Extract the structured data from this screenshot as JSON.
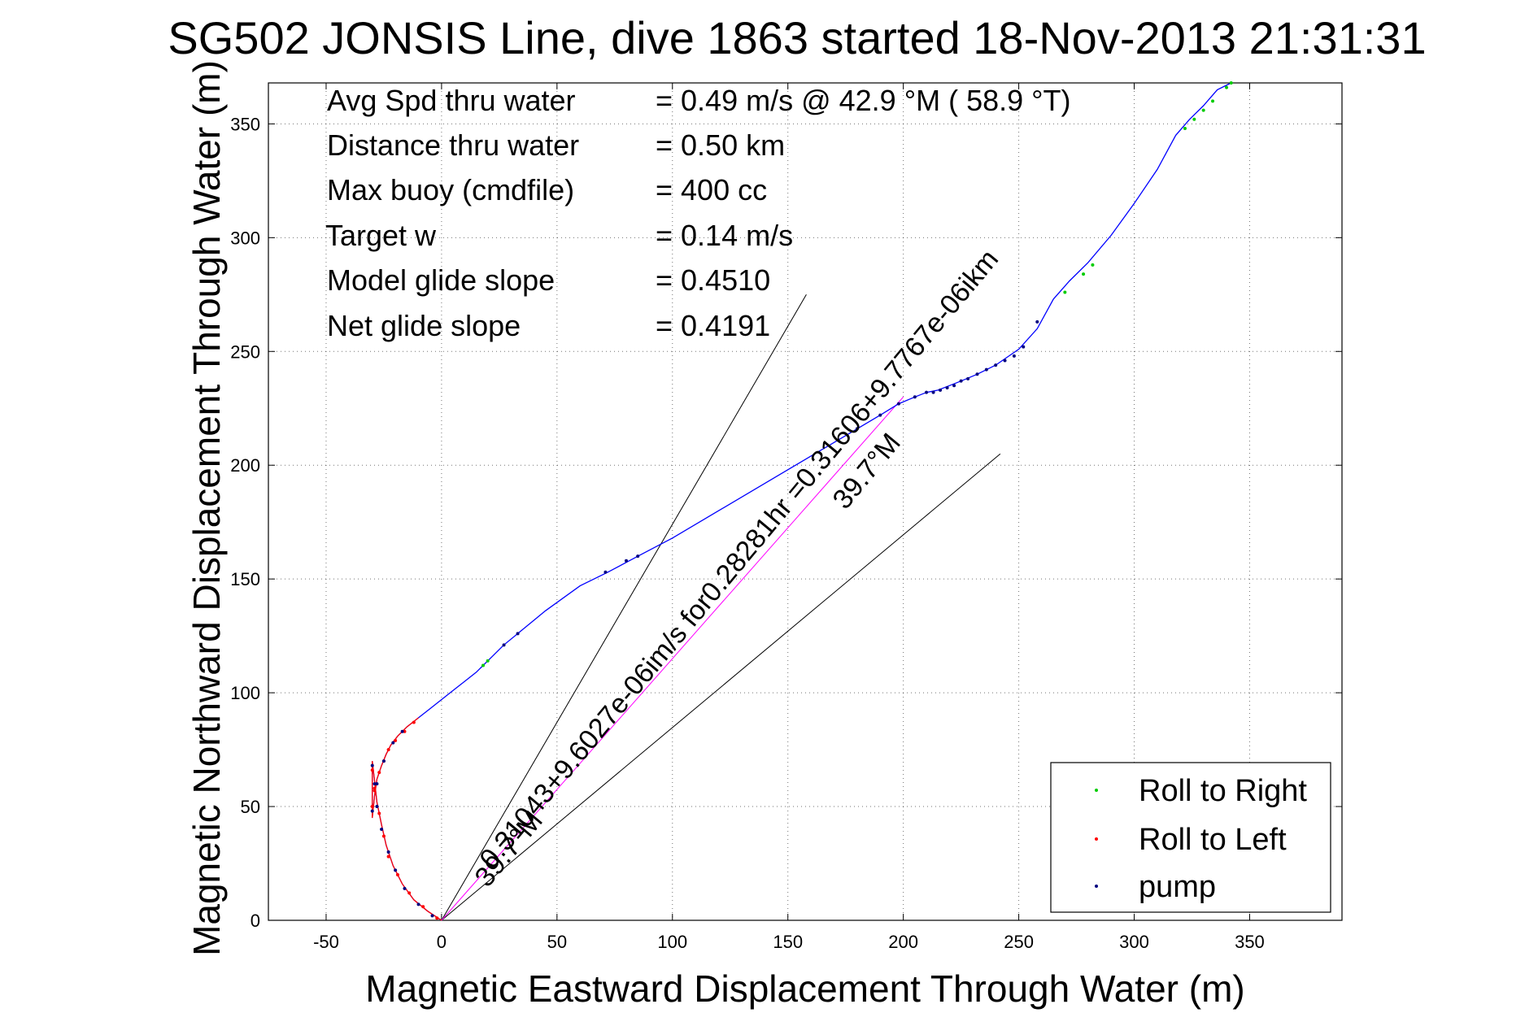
{
  "chart_data": {
    "type": "line",
    "title": "SG502 JONSIS Line, dive 1863 started 18-Nov-2013 21:31:31",
    "xlabel": "Magnetic Eastward Displacement Through Water (m)",
    "ylabel": "Magnetic Northward Displacement Through Water (m)",
    "xlim": [
      -75,
      390
    ],
    "ylim": [
      0,
      368
    ],
    "xticks": [
      -50,
      0,
      50,
      100,
      150,
      200,
      250,
      300,
      350
    ],
    "yticks": [
      0,
      50,
      100,
      150,
      200,
      250,
      300,
      350
    ],
    "grid": true,
    "legend_position": "bottom-right",
    "info_lines": [
      {
        "label": "Avg Spd thru water",
        "value": "=  0.49 m/s @  42.9 °M ( 58.9 °T)"
      },
      {
        "label": "Distance thru water",
        "value": "=  0.50 km"
      },
      {
        "label": "Max buoy (cmdfile)",
        "value": "= 400 cc"
      },
      {
        "label": "Target w",
        "value": "= 0.14 m/s"
      },
      {
        "label": "Model glide slope",
        "value": "= 0.4510"
      },
      {
        "label": "Net glide slope",
        "value": "= 0.4191"
      }
    ],
    "track": {
      "color": "#0000ff",
      "x": [
        0,
        -6,
        -12,
        -17,
        -21,
        -24,
        -26,
        -28,
        -29,
        -30,
        -30,
        -29,
        -28,
        -26,
        -24,
        -22,
        -19,
        -15,
        -10,
        -5,
        0,
        5,
        10,
        15,
        18,
        22,
        27,
        33,
        45,
        60,
        72,
        85,
        100,
        120,
        145,
        165,
        180,
        190,
        198,
        205,
        210,
        215,
        220,
        225,
        232,
        240,
        250,
        258,
        265,
        272,
        280,
        290,
        300,
        310,
        318,
        324,
        330,
        336,
        342
      ],
      "y": [
        0,
        4,
        9,
        16,
        24,
        33,
        42,
        52,
        61,
        70,
        45,
        55,
        62,
        68,
        73,
        77,
        81,
        85,
        89,
        93,
        97,
        101,
        105,
        109,
        112,
        116,
        121,
        126,
        136,
        147,
        153,
        160,
        168,
        180,
        195,
        207,
        216,
        222,
        227,
        230,
        232,
        233,
        235,
        237,
        240,
        244,
        251,
        260,
        273,
        281,
        289,
        301,
        315,
        330,
        345,
        352,
        358,
        365,
        368
      ]
    },
    "roll_left_track": {
      "color": "#ff0000",
      "x": [
        0,
        -6,
        -12,
        -17,
        -21,
        -24,
        -26,
        -28,
        -29,
        -30,
        -30,
        -29,
        -28,
        -26,
        -24,
        -22,
        -19,
        -15,
        -10
      ],
      "y": [
        0,
        4,
        9,
        16,
        24,
        33,
        42,
        52,
        61,
        70,
        45,
        55,
        62,
        68,
        73,
        77,
        81,
        85,
        89
      ]
    },
    "series": [
      {
        "name": "Roll to Right",
        "color": "#00cc00",
        "x": [
          18,
          20,
          270,
          278,
          282,
          322,
          326,
          330,
          334,
          340,
          342
        ],
        "y": [
          112,
          114,
          276,
          284,
          288,
          348,
          352,
          356,
          360,
          366,
          368
        ]
      },
      {
        "name": "Roll to Left",
        "color": "#ff0000",
        "x": [
          -2,
          -8,
          -14,
          -19,
          -23,
          -25,
          -27,
          -29,
          -30,
          -30,
          -29,
          -27,
          -25,
          -23,
          -20,
          -16,
          -12
        ],
        "y": [
          1,
          6,
          12,
          20,
          28,
          37,
          47,
          57,
          66,
          50,
          58,
          65,
          70,
          75,
          79,
          83,
          87
        ]
      },
      {
        "name": "pump",
        "color": "#00007f",
        "x": [
          -4,
          -10,
          -16,
          -20,
          -23,
          -26,
          -28,
          -29,
          -30,
          -30,
          -28,
          -25,
          -21,
          -17,
          27,
          33,
          71,
          80,
          85,
          180,
          190,
          198,
          205,
          210,
          213,
          216,
          219,
          222,
          225,
          228,
          232,
          236,
          240,
          244,
          248,
          252,
          258
        ],
        "y": [
          2,
          7,
          14,
          22,
          30,
          40,
          50,
          60,
          68,
          48,
          60,
          70,
          78,
          83,
          121,
          126,
          153,
          158,
          160,
          216,
          222,
          227,
          230,
          232,
          232,
          233,
          234,
          235,
          237,
          238,
          240,
          242,
          244,
          246,
          248,
          252,
          263
        ]
      }
    ],
    "reference_lines": [
      {
        "x": [
          0,
          158
        ],
        "y": [
          0,
          275
        ]
      },
      {
        "x": [
          0,
          242
        ],
        "y": [
          0,
          205
        ]
      }
    ],
    "current_line": {
      "color": "#ff00ff",
      "x": [
        0,
        200
      ],
      "y": [
        0,
        230
      ]
    },
    "annotations": [
      {
        "text": "0.31043+9.6027e-06im/s for0.28281hr =0.31606+9.7767e-06ikm",
        "x": 22,
        "y": 22
      },
      {
        "text": "39.7°M",
        "x": 175,
        "y": 180
      },
      {
        "text": "39.7°M",
        "x": 20,
        "y": 14
      }
    ]
  }
}
